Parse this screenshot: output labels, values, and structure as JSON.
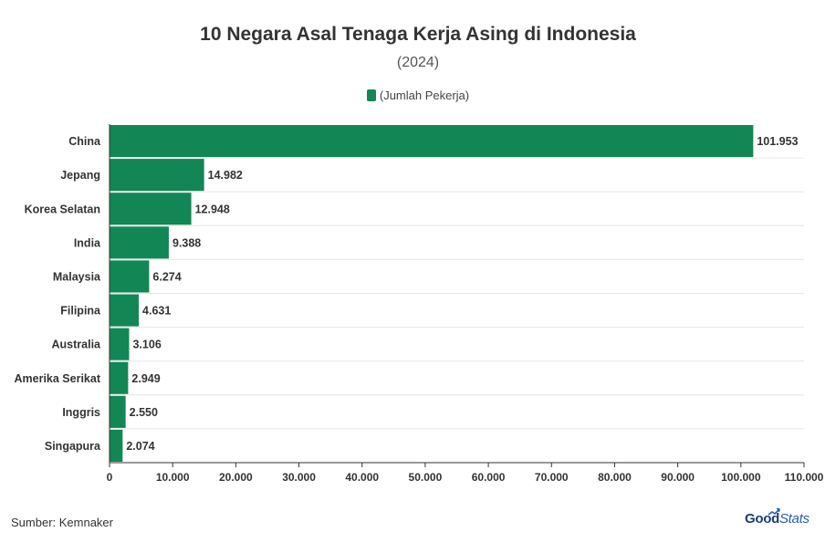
{
  "header": {
    "title": "10 Negara Asal Tenaga Kerja Asing di Indonesia",
    "subtitle": "(2024)"
  },
  "legend": {
    "label": "(Jumlah Pekerja)"
  },
  "footer": {
    "source": "Sumber: Kemnaker",
    "logo_good": "Good",
    "logo_stats": "Stats"
  },
  "colors": {
    "bar": "#138655",
    "grid": "#e6e6e6",
    "axis": "#333333"
  },
  "chart_data": {
    "type": "bar",
    "orientation": "horizontal",
    "title": "10 Negara Asal Tenaga Kerja Asing di Indonesia",
    "subtitle": "(2024)",
    "categories": [
      "China",
      "Jepang",
      "Korea Selatan",
      "India",
      "Malaysia",
      "Filipina",
      "Australia",
      "Amerika Serikat",
      "Inggris",
      "Singapura"
    ],
    "series": [
      {
        "name": "(Jumlah Pekerja)",
        "values": [
          101953,
          14982,
          12948,
          9388,
          6274,
          4631,
          3106,
          2949,
          2550,
          2074
        ],
        "value_labels": [
          "101.953",
          "14.982",
          "12.948",
          "9.388",
          "6.274",
          "4.631",
          "3.106",
          "2.949",
          "2.550",
          "2.074"
        ]
      }
    ],
    "xlim": [
      0,
      110000
    ],
    "xticks": [
      0,
      10000,
      20000,
      30000,
      40000,
      50000,
      60000,
      70000,
      80000,
      90000,
      100000,
      110000
    ],
    "xtick_labels": [
      "0",
      "10.000",
      "20.000",
      "30.000",
      "40.000",
      "50.000",
      "60.000",
      "70.000",
      "80.000",
      "90.000",
      "100.000",
      "110.000"
    ],
    "grid": true,
    "legend_position": "top-center"
  }
}
